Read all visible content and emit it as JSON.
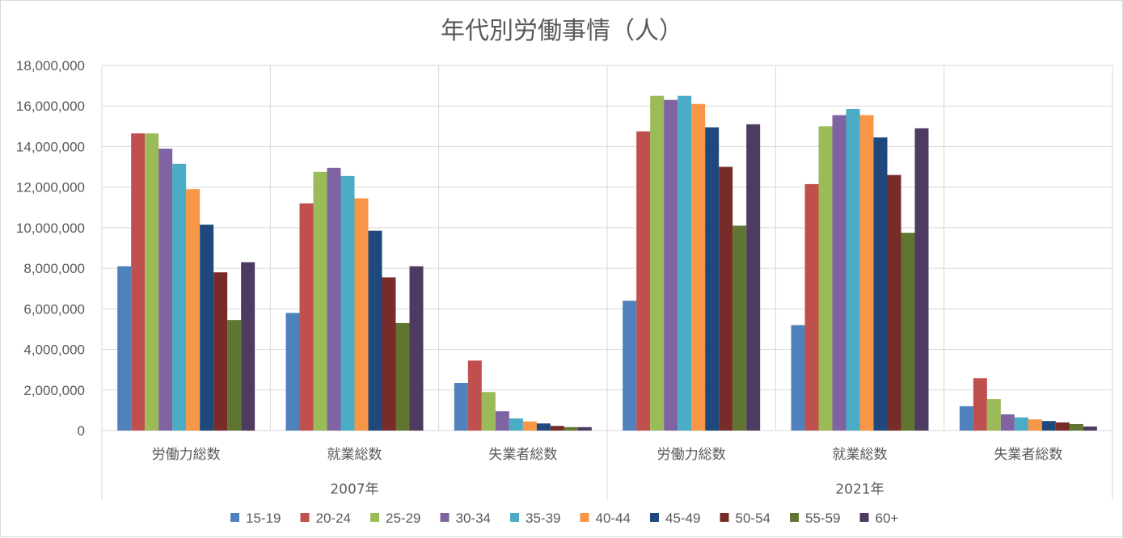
{
  "chart_data": {
    "type": "bar",
    "title": "年代別労働事情（人）",
    "ylim": [
      0,
      18000000
    ],
    "yticks": [
      0,
      2000000,
      4000000,
      6000000,
      8000000,
      10000000,
      12000000,
      14000000,
      16000000,
      18000000
    ],
    "ytick_labels": [
      "0",
      "2,000,000",
      "4,000,000",
      "6,000,000",
      "8,000,000",
      "10,000,000",
      "12,000,000",
      "14,000,000",
      "16,000,000",
      "18,000,000"
    ],
    "grid": true,
    "legend_position": "bottom",
    "groups": [
      {
        "label": "2007年",
        "categories": [
          "労働力総数",
          "就業総数",
          "失業者総数"
        ]
      },
      {
        "label": "2021年",
        "categories": [
          "労働力総数",
          "就業総数",
          "失業者総数"
        ]
      }
    ],
    "series": [
      {
        "name": "15-19",
        "color": "#4f81bd",
        "values": [
          8100000,
          5800000,
          2350000,
          6400000,
          5200000,
          1200000
        ]
      },
      {
        "name": "20-24",
        "color": "#c0504d",
        "values": [
          14650000,
          11200000,
          3450000,
          14750000,
          12150000,
          2580000
        ]
      },
      {
        "name": "25-29",
        "color": "#9bbb59",
        "values": [
          14650000,
          12750000,
          1900000,
          16500000,
          15000000,
          1550000
        ]
      },
      {
        "name": "30-34",
        "color": "#8064a2",
        "values": [
          13900000,
          12950000,
          950000,
          16300000,
          15550000,
          800000
        ]
      },
      {
        "name": "35-39",
        "color": "#4bacc6",
        "values": [
          13150000,
          12550000,
          600000,
          16500000,
          15850000,
          650000
        ]
      },
      {
        "name": "40-44",
        "color": "#f79646",
        "values": [
          11900000,
          11450000,
          450000,
          16100000,
          15550000,
          550000
        ]
      },
      {
        "name": "45-49",
        "color": "#1f497d",
        "values": [
          10150000,
          9850000,
          350000,
          14950000,
          14450000,
          470000
        ]
      },
      {
        "name": "50-54",
        "color": "#772c2a",
        "values": [
          7800000,
          7550000,
          230000,
          13000000,
          12600000,
          400000
        ]
      },
      {
        "name": "55-59",
        "color": "#5f7530",
        "values": [
          5450000,
          5300000,
          170000,
          10100000,
          9750000,
          320000
        ]
      },
      {
        "name": "60+",
        "color": "#4d3b62",
        "values": [
          8300000,
          8100000,
          170000,
          15100000,
          14900000,
          200000
        ]
      }
    ]
  }
}
